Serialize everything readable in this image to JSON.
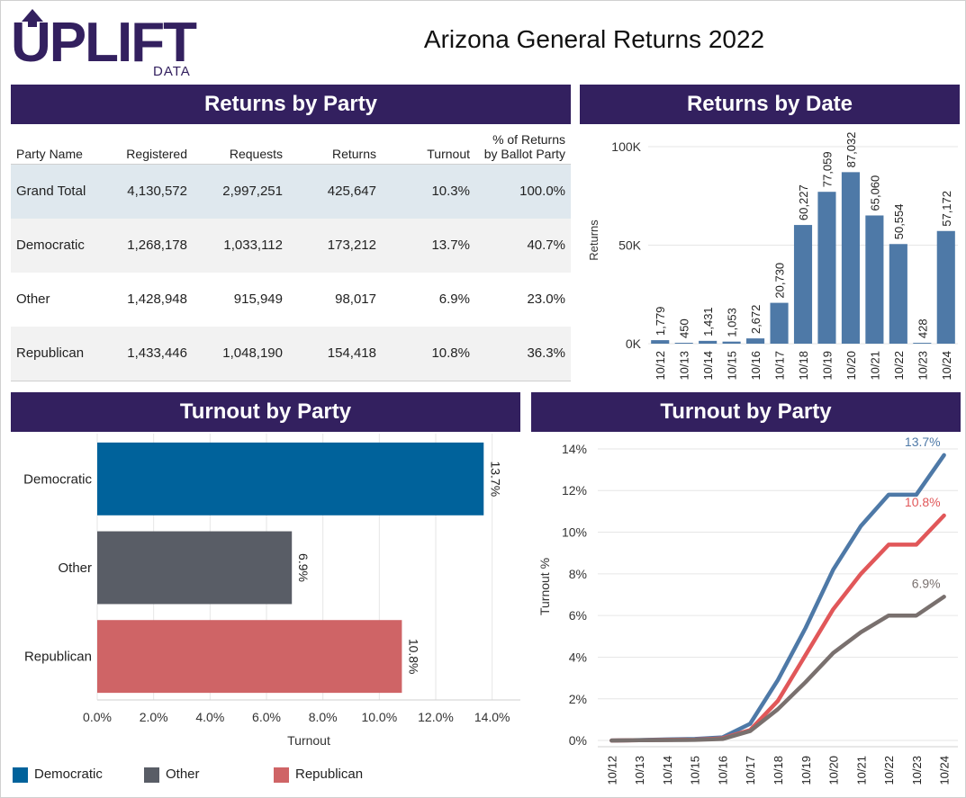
{
  "brand": {
    "logo_text": "UPLIFT",
    "logo_subtext": "DATA",
    "color": "#33205f"
  },
  "title": "Arizona General Returns 2022",
  "panels": {
    "returns_by_party": "Returns by Party",
    "returns_by_date": "Returns by Date",
    "turnout_bar": "Turnout by Party",
    "turnout_line": "Turnout by Party"
  },
  "table": {
    "headers": {
      "party": "Party Name",
      "registered": "Registered",
      "requests": "Requests",
      "returns": "Returns",
      "turnout": "Turnout",
      "pct_line1": "% of Returns",
      "pct_line2": "by Ballot Party"
    },
    "rows": [
      {
        "party": "Grand Total",
        "registered": "4,130,572",
        "requests": "2,997,251",
        "returns": "425,647",
        "turnout": "10.3%",
        "pct": "100.0%"
      },
      {
        "party": "Democratic",
        "registered": "1,268,178",
        "requests": "1,033,112",
        "returns": "173,212",
        "turnout": "13.7%",
        "pct": "40.7%"
      },
      {
        "party": "Other",
        "registered": "1,428,948",
        "requests": "915,949",
        "returns": "98,017",
        "turnout": "6.9%",
        "pct": "23.0%"
      },
      {
        "party": "Republican",
        "registered": "1,433,446",
        "requests": "1,048,190",
        "returns": "154,418",
        "turnout": "10.8%",
        "pct": "36.3%"
      }
    ]
  },
  "legend": [
    {
      "name": "Democratic",
      "color": "#00629b"
    },
    {
      "name": "Other",
      "color": "#595d66"
    },
    {
      "name": "Republican",
      "color": "#cf6466"
    }
  ],
  "chart_data": [
    {
      "type": "bar",
      "title": "Returns by Date",
      "ylabel": "Returns",
      "categories": [
        "10/12",
        "10/13",
        "10/14",
        "10/15",
        "10/16",
        "10/17",
        "10/18",
        "10/19",
        "10/20",
        "10/21",
        "10/22",
        "10/23",
        "10/24"
      ],
      "values": [
        1779,
        450,
        1431,
        1053,
        2672,
        20730,
        60227,
        77059,
        87032,
        65060,
        50554,
        428,
        57172
      ],
      "data_labels": [
        "1,779",
        "450",
        "1,431",
        "1,053",
        "2,672",
        "20,730",
        "60,227",
        "77,059",
        "87,032",
        "65,060",
        "50,554",
        "428",
        "57,172"
      ],
      "yticks": [
        0,
        50000,
        100000
      ],
      "ytick_labels": [
        "0K",
        "50K",
        "100K"
      ],
      "ylim": [
        0,
        105000
      ],
      "color": "#4e79a7",
      "grid": true
    },
    {
      "type": "bar",
      "orientation": "horizontal",
      "title": "Turnout by Party",
      "xlabel": "Turnout",
      "categories": [
        "Democratic",
        "Other",
        "Republican"
      ],
      "values": [
        13.7,
        6.9,
        10.8
      ],
      "data_labels": [
        "13.7%",
        "6.9%",
        "10.8%"
      ],
      "colors": [
        "#00629b",
        "#595d66",
        "#cf6466"
      ],
      "xticks": [
        0,
        2,
        4,
        6,
        8,
        10,
        12,
        14
      ],
      "xtick_labels": [
        "0.0%",
        "2.0%",
        "4.0%",
        "6.0%",
        "8.0%",
        "10.0%",
        "12.0%",
        "14.0%"
      ],
      "xlim": [
        0,
        15
      ],
      "grid": true
    },
    {
      "type": "line",
      "title": "Turnout by Party",
      "ylabel": "Turnout %",
      "x": [
        "10/12",
        "10/13",
        "10/14",
        "10/15",
        "10/16",
        "10/17",
        "10/18",
        "10/19",
        "10/20",
        "10/21",
        "10/22",
        "10/23",
        "10/24"
      ],
      "yticks": [
        0,
        2,
        4,
        6,
        8,
        10,
        12,
        14
      ],
      "ytick_labels": [
        "0%",
        "2%",
        "4%",
        "6%",
        "8%",
        "10%",
        "12%",
        "14%"
      ],
      "ylim": [
        -0.3,
        14.3
      ],
      "series": [
        {
          "name": "Democratic",
          "color": "#4e79a7",
          "end_label": "13.7%",
          "values": [
            0,
            0.02,
            0.05,
            0.07,
            0.15,
            0.8,
            2.9,
            5.4,
            8.2,
            10.3,
            11.8,
            11.8,
            13.7
          ]
        },
        {
          "name": "Republican",
          "color": "#e15759",
          "end_label": "10.8%",
          "values": [
            0,
            0.01,
            0.03,
            0.04,
            0.1,
            0.5,
            1.9,
            4.1,
            6.3,
            8.0,
            9.4,
            9.4,
            10.8
          ]
        },
        {
          "name": "Other",
          "color": "#79706e",
          "end_label": "6.9%",
          "values": [
            0,
            0.01,
            0.02,
            0.03,
            0.07,
            0.45,
            1.5,
            2.8,
            4.2,
            5.2,
            6.0,
            6.0,
            6.9
          ]
        }
      ],
      "grid": true
    }
  ]
}
